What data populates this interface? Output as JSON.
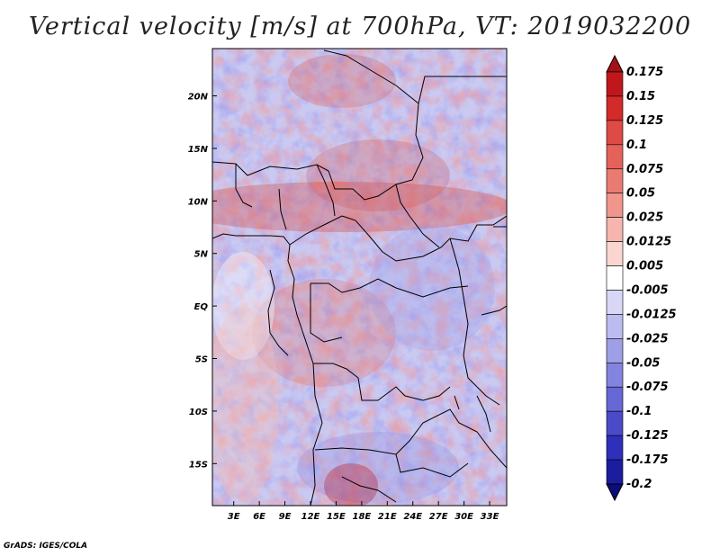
{
  "title": "Vertical velocity [m/s] at 700hPa, VT: 2019032200",
  "credit": "GrADS: IGES/COLA",
  "map": {
    "lon_labels": [
      "3E",
      "6E",
      "9E",
      "12E",
      "15E",
      "18E",
      "21E",
      "24E",
      "27E",
      "30E",
      "33E"
    ],
    "lon_values": [
      3,
      6,
      9,
      12,
      15,
      18,
      21,
      24,
      27,
      30,
      33
    ],
    "lat_labels": [
      "20N",
      "15N",
      "10N",
      "5N",
      "EQ",
      "5S",
      "10S",
      "15S"
    ],
    "lat_values": [
      20,
      15,
      10,
      5,
      0,
      -5,
      -10,
      -15
    ],
    "lon_range": [
      0.5,
      35
    ],
    "lat_range": [
      -19,
      24.5
    ]
  },
  "colorbar": {
    "labels": [
      "0.175",
      "0.15",
      "0.125",
      "0.1",
      "0.075",
      "0.05",
      "0.025",
      "0.0125",
      "0.005",
      "-0.005",
      "-0.0125",
      "-0.025",
      "-0.05",
      "-0.075",
      "-0.1",
      "-0.125",
      "-0.175",
      "-0.2"
    ],
    "colors": [
      "#a50f15",
      "#c0171c",
      "#d32a2a",
      "#de4a45",
      "#e4625a",
      "#e97b72",
      "#f0968d",
      "#f6b5ae",
      "#fbd6d1",
      "#ffffff",
      "#d8d8f6",
      "#bcbcf0",
      "#9f9fe8",
      "#8383e0",
      "#6767d6",
      "#4b4bca",
      "#2f2fbc",
      "#1c1c9e",
      "#0d0d7a"
    ]
  }
}
